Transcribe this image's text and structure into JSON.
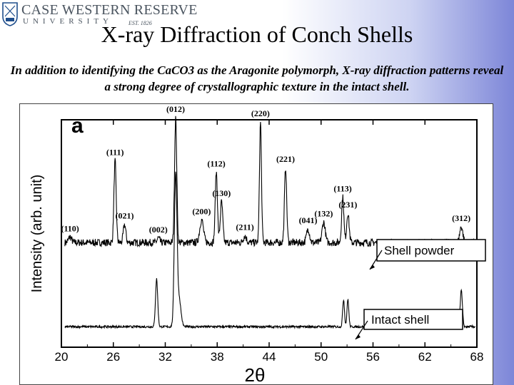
{
  "logo": {
    "name": "CASE WESTERN RESERVE",
    "university": "UNIVERSITY",
    "est": "EST. 1826"
  },
  "title": "X-ray Diffraction of Conch Shells",
  "subtitle": "In addition to identifying the CaCO3 as the Aragonite polymorph, X-ray diffraction patterns reveal a strong degree of crystallographic texture in the intact shell.",
  "chart_data": {
    "type": "line",
    "panel_label": "a",
    "xlabel": "2θ",
    "ylabel": "Intensity (arb. unit)",
    "xlim": [
      20,
      68
    ],
    "ylim": [
      0,
      100
    ],
    "xticks": [
      "20",
      "26",
      "32",
      "38",
      "44",
      "50",
      "56",
      "62",
      "68"
    ],
    "series": [
      {
        "name": "Shell powder",
        "baseline": 46,
        "noise": 1.6,
        "peaks": [
          {
            "x": 21.0,
            "h": 2.5,
            "w": 0.25,
            "label": "(110)"
          },
          {
            "x": 26.2,
            "h": 36,
            "w": 0.18,
            "label": "(111)"
          },
          {
            "x": 27.3,
            "h": 8,
            "w": 0.2,
            "label": "(021)"
          },
          {
            "x": 31.2,
            "h": 2,
            "w": 0.2,
            "label": "(002)"
          },
          {
            "x": 33.2,
            "h": 55,
            "w": 0.18,
            "label": "(012)"
          },
          {
            "x": 36.2,
            "h": 10,
            "w": 0.3,
            "label": "(200)"
          },
          {
            "x": 37.9,
            "h": 31,
            "w": 0.18,
            "label": "(112)"
          },
          {
            "x": 38.5,
            "h": 18,
            "w": 0.2,
            "label": "(130)"
          },
          {
            "x": 41.2,
            "h": 3,
            "w": 0.25,
            "label": "(211)"
          },
          {
            "x": 43.0,
            "h": 53,
            "w": 0.16,
            "label": "(220)"
          },
          {
            "x": 45.9,
            "h": 33,
            "w": 0.18,
            "label": "(221)"
          },
          {
            "x": 48.5,
            "h": 6,
            "w": 0.25,
            "label": "(041)"
          },
          {
            "x": 50.3,
            "h": 9,
            "w": 0.25,
            "label": "(132)"
          },
          {
            "x": 52.5,
            "h": 20,
            "w": 0.18,
            "label": "(113)"
          },
          {
            "x": 53.1,
            "h": 13,
            "w": 0.2,
            "label": "(231)"
          },
          {
            "x": 66.2,
            "h": 7,
            "w": 0.25,
            "label": "(312)"
          }
        ]
      },
      {
        "name": "Intact shell",
        "baseline": 9,
        "noise": 0.5,
        "peaks": [
          {
            "x": 31.0,
            "h": 21,
            "w": 0.18
          },
          {
            "x": 33.2,
            "h": 66,
            "w": 0.22
          },
          {
            "x": 33.6,
            "h": 12,
            "w": 0.3
          },
          {
            "x": 52.6,
            "h": 12,
            "w": 0.15
          },
          {
            "x": 53.1,
            "h": 12,
            "w": 0.15
          },
          {
            "x": 66.2,
            "h": 16,
            "w": 0.18
          }
        ]
      }
    ],
    "legend": [
      {
        "label": "Shell powder",
        "series": "Shell powder"
      },
      {
        "label": "Intact shell",
        "series": "Intact shell"
      }
    ]
  }
}
